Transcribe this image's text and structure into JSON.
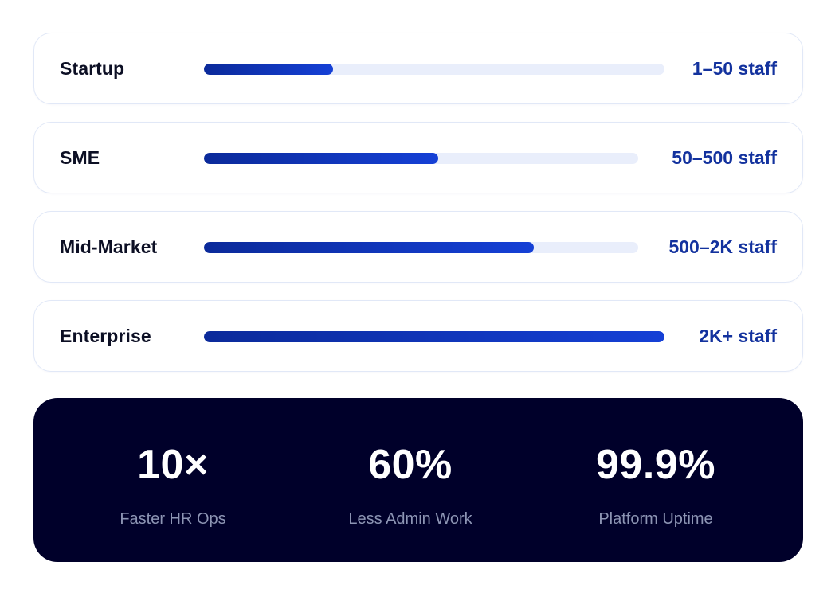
{
  "segments": [
    {
      "label": "Startup",
      "range": "1–50 staff",
      "fill": 0.28
    },
    {
      "label": "SME",
      "range": "50–500 staff",
      "fill": 0.54
    },
    {
      "label": "Mid-Market",
      "range": "500–2K staff",
      "fill": 0.76
    },
    {
      "label": "Enterprise",
      "range": "2K+ staff",
      "fill": 1.0
    }
  ],
  "stats": [
    {
      "value": "10×",
      "caption": "Faster HR Ops"
    },
    {
      "value": "60%",
      "caption": "Less Admin Work"
    },
    {
      "value": "99.9%",
      "caption": "Platform Uptime"
    }
  ],
  "colors": {
    "accent": "#1540d6",
    "accent_dark": "#0b2a9a",
    "track": "#e9eefb",
    "panel_background": "#00002a",
    "range_text": "#13329e"
  }
}
